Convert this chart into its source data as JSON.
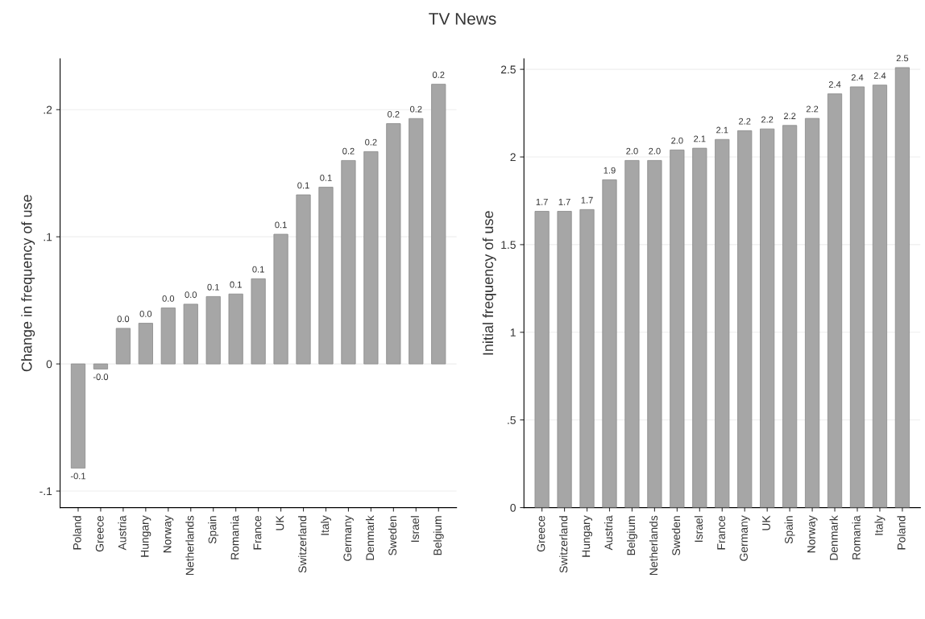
{
  "chart_data": [
    {
      "type": "bar",
      "title": "TV News",
      "ylabel": "Change in frequency of use",
      "categories": [
        "Poland",
        "Greece",
        "Austria",
        "Hungary",
        "Norway",
        "Netherlands",
        "Spain",
        "Romania",
        "France",
        "UK",
        "Switzerland",
        "Italy",
        "Germany",
        "Denmark",
        "Sweden",
        "Israel",
        "Belgium"
      ],
      "values": [
        -0.082,
        -0.004,
        0.028,
        0.032,
        0.044,
        0.047,
        0.053,
        0.055,
        0.067,
        0.102,
        0.133,
        0.139,
        0.16,
        0.167,
        0.189,
        0.193,
        0.22
      ],
      "value_labels": [
        "-0.1",
        "-0.0",
        "0.0",
        "0.0",
        "0.0",
        "0.0",
        "0.1",
        "0.1",
        "0.1",
        "0.1",
        "0.1",
        "0.1",
        "0.2",
        "0.2",
        "0.2",
        "0.2",
        "0.2"
      ],
      "color": "#a6a6a6",
      "ylim": [
        -0.113,
        0.24
      ],
      "yticks": [
        {
          "value": -0.1,
          "label": "-.1"
        },
        0,
        {
          "value": 0.1,
          "label": ".1"
        },
        {
          "value": 0.2,
          "label": ".2"
        }
      ],
      "grid": "y"
    },
    {
      "type": "bar",
      "ylabel": "Initial frequency of use",
      "categories": [
        "Greece",
        "Switzerland",
        "Hungary",
        "Austria",
        "Belgium",
        "Netherlands",
        "Sweden",
        "Israel",
        "France",
        "Germany",
        "UK",
        "Spain",
        "Norway",
        "Denmark",
        "Romania",
        "Italy",
        "Poland"
      ],
      "values": [
        1.69,
        1.69,
        1.7,
        1.87,
        1.98,
        1.98,
        2.04,
        2.05,
        2.1,
        2.15,
        2.16,
        2.18,
        2.22,
        2.36,
        2.4,
        2.41,
        2.51
      ],
      "value_labels": [
        "1.7",
        "1.7",
        "1.7",
        "1.9",
        "2.0",
        "2.0",
        "2.0",
        "2.1",
        "2.1",
        "2.2",
        "2.2",
        "2.2",
        "2.2",
        "2.4",
        "2.4",
        "2.4",
        "2.5"
      ],
      "color": "#a6a6a6",
      "ylim": [
        0,
        2.56
      ],
      "yticks": [
        0,
        {
          "value": 0.5,
          "label": ".5"
        },
        1,
        1.5,
        2,
        2.5
      ],
      "grid": "y"
    }
  ]
}
